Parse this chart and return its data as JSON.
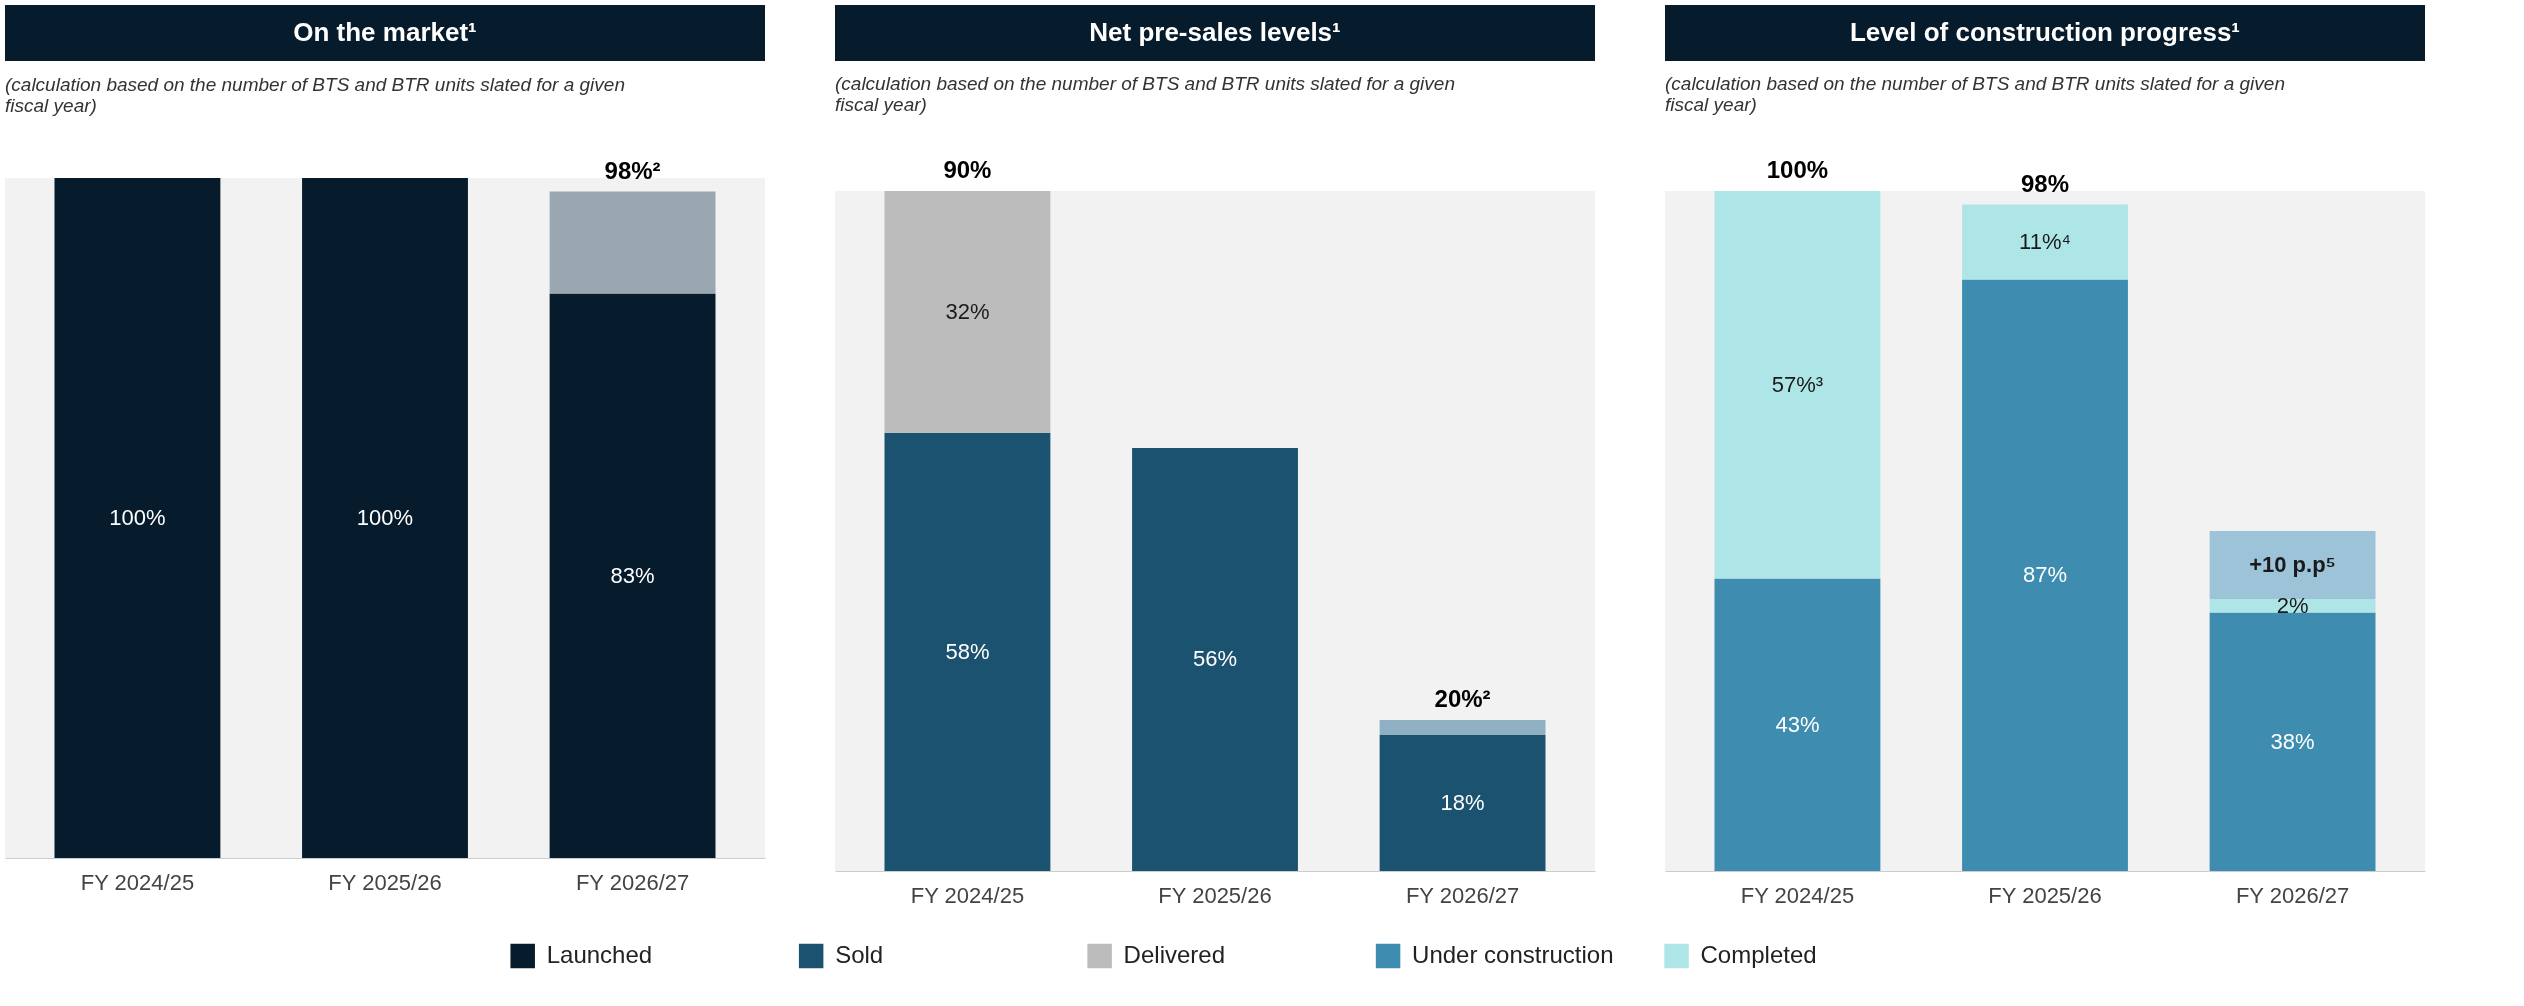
{
  "chart_data": [
    {
      "type": "bar",
      "stacked": true,
      "legend": "bottom",
      "title": "On the market¹",
      "subtitle": "(calculation based on the number of BTS and BTR units slated for a given fiscal year)",
      "categories": [
        "FY 2024/25",
        "FY 2025/26",
        "FY 2026/27"
      ],
      "series": [
        {
          "name": "Launched",
          "color": "#061b2b",
          "values": [
            100,
            100,
            83
          ],
          "value_labels": [
            "100%",
            "100%",
            "83%"
          ]
        },
        {
          "color": "#9aa6b0",
          "values": [
            null,
            null,
            15
          ],
          "value_labels": [
            null,
            null,
            null
          ]
        }
      ],
      "totals": [
        null,
        null,
        "98%²"
      ]
    },
    {
      "type": "bar",
      "stacked": true,
      "legend": "bottom",
      "title": "Net pre-sales levels¹",
      "subtitle": "(calculation based on the number of BTS and BTR units slated for a given fiscal year)",
      "categories": [
        "FY 2024/25",
        "FY 2025/26",
        "FY 2026/27"
      ],
      "series": [
        {
          "name": "Sold",
          "color": "#1a526f",
          "values": [
            58,
            56,
            18
          ],
          "value_labels": [
            "58%",
            "56%",
            "18%"
          ]
        },
        {
          "name": "Delivered",
          "color": "#bbbcbb",
          "values": [
            32,
            null,
            null
          ],
          "value_labels": [
            "32%",
            null,
            null
          ]
        },
        {
          "color": "#8fb0c2",
          "values": [
            null,
            null,
            2
          ],
          "value_labels": [
            null,
            null,
            null
          ]
        }
      ],
      "totals": [
        "90%",
        null,
        "20%²"
      ]
    },
    {
      "type": "bar",
      "stacked": true,
      "legend": "bottom",
      "title": "Level of construction progress¹",
      "subtitle": "(calculation based on the number of BTS and BTR units slated for a given fiscal year)",
      "categories": [
        "FY 2024/25",
        "FY 2025/26",
        "FY 2026/27"
      ],
      "series": [
        {
          "name": "Under construction",
          "color": "#3e8db0",
          "values": [
            43,
            87,
            38
          ],
          "value_labels": [
            "43%",
            "87%",
            "38%"
          ]
        },
        {
          "name": "Completed",
          "color": "#aee6e7",
          "values": [
            57,
            11,
            2
          ],
          "value_labels": [
            "57%³",
            "11%⁴",
            "2%"
          ]
        },
        {
          "color": "#9cc3d8",
          "values": [
            null,
            null,
            10
          ],
          "value_labels": [
            null,
            null,
            "+10 p.p⁵"
          ]
        }
      ],
      "totals": [
        "100%",
        "98%",
        null
      ]
    }
  ]
}
